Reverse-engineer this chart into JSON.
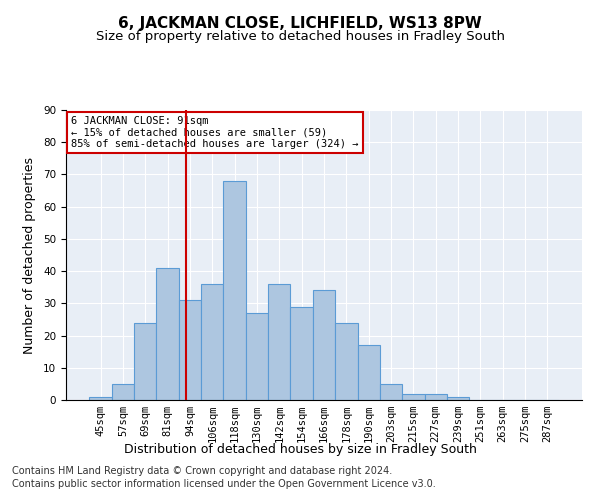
{
  "title1": "6, JACKMAN CLOSE, LICHFIELD, WS13 8PW",
  "title2": "Size of property relative to detached houses in Fradley South",
  "xlabel": "Distribution of detached houses by size in Fradley South",
  "ylabel": "Number of detached properties",
  "bin_labels": [
    "45sqm",
    "57sqm",
    "69sqm",
    "81sqm",
    "94sqm",
    "106sqm",
    "118sqm",
    "130sqm",
    "142sqm",
    "154sqm",
    "166sqm",
    "178sqm",
    "190sqm",
    "203sqm",
    "215sqm",
    "227sqm",
    "239sqm",
    "251sqm",
    "263sqm",
    "275sqm",
    "287sqm"
  ],
  "bar_heights": [
    1,
    5,
    24,
    41,
    31,
    36,
    68,
    27,
    36,
    29,
    34,
    24,
    17,
    5,
    2,
    2,
    1,
    0,
    0,
    0,
    0
  ],
  "bar_color": "#adc6e0",
  "bar_edgecolor": "#5b9bd5",
  "bar_linewidth": 0.8,
  "ylim": [
    0,
    90
  ],
  "yticks": [
    0,
    10,
    20,
    30,
    40,
    50,
    60,
    70,
    80,
    90
  ],
  "vline_x": 3.83,
  "vline_color": "#cc0000",
  "annotation_text": "6 JACKMAN CLOSE: 91sqm\n← 15% of detached houses are smaller (59)\n85% of semi-detached houses are larger (324) →",
  "annotation_box_color": "#ffffff",
  "annotation_box_edgecolor": "#cc0000",
  "footer1": "Contains HM Land Registry data © Crown copyright and database right 2024.",
  "footer2": "Contains public sector information licensed under the Open Government Licence v3.0.",
  "plot_background": "#e8eef6",
  "fig_background": "#ffffff",
  "grid_color": "#ffffff",
  "title1_fontsize": 11,
  "title2_fontsize": 9.5,
  "xlabel_fontsize": 9,
  "ylabel_fontsize": 9,
  "tick_fontsize": 7.5,
  "footer_fontsize": 7
}
